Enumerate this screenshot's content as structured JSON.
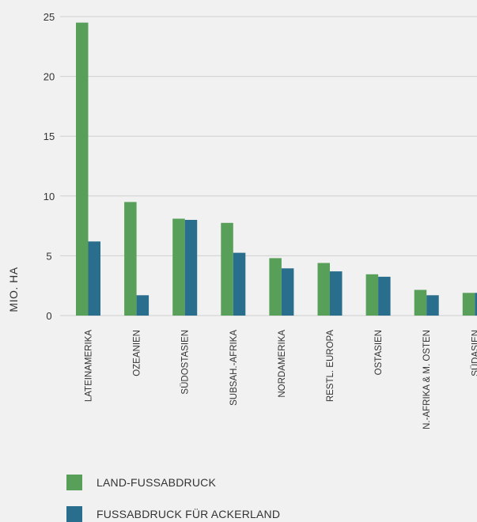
{
  "chart_data": {
    "type": "bar",
    "ylabel": "MIO. HA",
    "ylim": [
      0,
      25
    ],
    "yticks": [
      0,
      5,
      10,
      15,
      20,
      25
    ],
    "grid": true,
    "legend_position": "bottom-left",
    "categories": [
      "LATEINAMERIKA",
      "OZEANIEN",
      "SÜDOSTASIEN",
      "SUBSAH.-AFRIKA",
      "NORDAMERIKA",
      "RESTL. EUROPA",
      "OSTASIEN",
      "N.-AFRIKA & M. OSTEN",
      "SÜDASIEN"
    ],
    "series": [
      {
        "name": "LAND-FUSSABDRUCK",
        "color": "#58a05a",
        "values": [
          24.5,
          9.5,
          8.1,
          7.75,
          4.8,
          4.4,
          3.45,
          2.15,
          1.9
        ]
      },
      {
        "name": "FUSSABDRUCK FÜR ACKERLAND",
        "color": "#2a6e8d",
        "values": [
          6.2,
          1.7,
          8.0,
          5.25,
          3.95,
          3.7,
          3.25,
          1.7,
          1.9
        ]
      }
    ]
  }
}
